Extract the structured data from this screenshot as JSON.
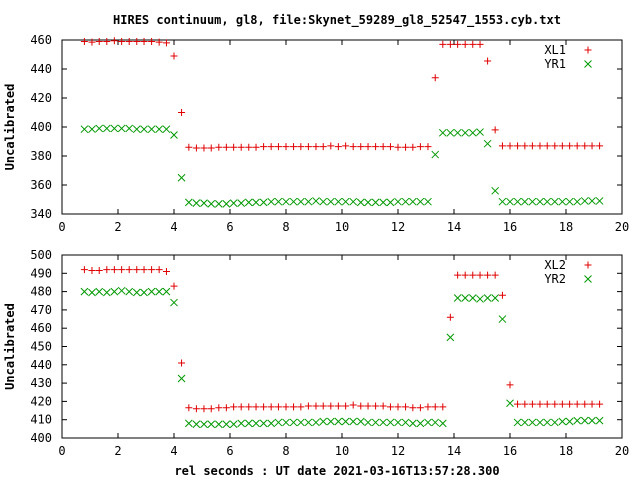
{
  "title": "HIRES continuum, gl8, file:Skynet_59289_gl8_52547_1553.cyb.txt",
  "xlabel": "rel seconds : UT date 2021-03-16T13:57:28.300",
  "colors": {
    "red": "#e00000",
    "green": "#009900"
  },
  "chart_data": [
    {
      "type": "scatter",
      "ylabel": "Uncalibrated",
      "xlim": [
        0,
        20
      ],
      "ylim": [
        340,
        460
      ],
      "xticks": [
        0,
        2,
        4,
        6,
        8,
        10,
        12,
        14,
        16,
        18,
        20
      ],
      "yticks": [
        340,
        360,
        380,
        400,
        420,
        440,
        460
      ],
      "legend_position": "top-right",
      "x": [
        0.8,
        1.07,
        1.33,
        1.6,
        1.87,
        2.13,
        2.4,
        2.67,
        2.93,
        3.2,
        3.47,
        3.73,
        4.0,
        4.27,
        4.53,
        4.8,
        5.07,
        5.33,
        5.6,
        5.87,
        6.13,
        6.4,
        6.67,
        6.93,
        7.2,
        7.47,
        7.73,
        8.0,
        8.27,
        8.53,
        8.8,
        9.07,
        9.33,
        9.6,
        9.87,
        10.13,
        10.4,
        10.67,
        10.93,
        11.2,
        11.47,
        11.73,
        12.0,
        12.27,
        12.53,
        12.8,
        13.07,
        13.33,
        13.6,
        13.87,
        14.13,
        14.4,
        14.67,
        14.93,
        15.2,
        15.47,
        15.73,
        16.0,
        16.27,
        16.53,
        16.8,
        17.07,
        17.33,
        17.6,
        17.87,
        18.13,
        18.4,
        18.67,
        18.93,
        19.2
      ],
      "series": [
        {
          "name": "XL1",
          "marker": "plus",
          "color": "#e00000",
          "values": [
            459,
            458.5,
            459,
            459,
            459.5,
            459,
            459,
            459,
            459,
            459,
            458.5,
            458,
            449,
            410,
            386,
            385.5,
            385.5,
            385.5,
            386,
            386,
            386,
            386,
            386,
            386,
            386.5,
            386.5,
            386.5,
            386.5,
            386.5,
            386.5,
            386.5,
            386.5,
            386.5,
            387,
            386.5,
            387,
            386.5,
            386.5,
            386.5,
            386.5,
            386.5,
            386.5,
            386,
            386,
            386,
            386.5,
            386.5,
            434,
            457,
            457,
            457,
            457,
            457,
            457,
            445.5,
            398,
            387,
            387,
            387,
            387,
            387,
            387,
            387,
            387,
            387,
            387,
            387,
            387,
            387,
            387
          ]
        },
        {
          "name": "YR1",
          "marker": "cross",
          "color": "#009900",
          "values": [
            398.5,
            398.5,
            399,
            399,
            399,
            399,
            399,
            398.5,
            398.5,
            398.5,
            398.5,
            398.5,
            394.5,
            365,
            348,
            347.5,
            347.5,
            347,
            347,
            347,
            347.5,
            347.5,
            348,
            348,
            348,
            348.5,
            348.5,
            348.5,
            348.5,
            348.5,
            348.5,
            349,
            348.5,
            348.5,
            348.5,
            348.5,
            348.5,
            348,
            348,
            348,
            348,
            348,
            348.5,
            348.5,
            348.5,
            348.5,
            348.5,
            381,
            396,
            396,
            396,
            396,
            396,
            396.5,
            388.5,
            356,
            348.5,
            348.5,
            348.5,
            348.5,
            348.5,
            348.5,
            348.5,
            348.5,
            348.5,
            348.5,
            348.5,
            349,
            349,
            349
          ]
        }
      ]
    },
    {
      "type": "scatter",
      "ylabel": "Uncalibrated",
      "xlim": [
        0,
        20
      ],
      "ylim": [
        400,
        500
      ],
      "xticks": [
        0,
        2,
        4,
        6,
        8,
        10,
        12,
        14,
        16,
        18,
        20
      ],
      "yticks": [
        400,
        410,
        420,
        430,
        440,
        450,
        460,
        470,
        480,
        490,
        500
      ],
      "legend_position": "top-right",
      "x": [
        0.8,
        1.07,
        1.33,
        1.6,
        1.87,
        2.13,
        2.4,
        2.67,
        2.93,
        3.2,
        3.47,
        3.73,
        4.0,
        4.27,
        4.53,
        4.8,
        5.07,
        5.33,
        5.6,
        5.87,
        6.13,
        6.4,
        6.67,
        6.93,
        7.2,
        7.47,
        7.73,
        8.0,
        8.27,
        8.53,
        8.8,
        9.07,
        9.33,
        9.6,
        9.87,
        10.13,
        10.4,
        10.67,
        10.93,
        11.2,
        11.47,
        11.73,
        12.0,
        12.27,
        12.53,
        12.8,
        13.07,
        13.33,
        13.6,
        13.87,
        14.13,
        14.4,
        14.67,
        14.93,
        15.2,
        15.47,
        15.73,
        16.0,
        16.27,
        16.53,
        16.8,
        17.07,
        17.33,
        17.6,
        17.87,
        18.13,
        18.4,
        18.67,
        18.93,
        19.2
      ],
      "series": [
        {
          "name": "XL2",
          "marker": "plus",
          "color": "#e00000",
          "values": [
            492,
            491.5,
            491.5,
            492,
            492,
            492,
            492,
            492,
            492,
            492,
            492,
            491,
            483,
            441,
            416.5,
            416,
            416,
            416,
            416.5,
            416.5,
            417,
            417,
            417,
            417,
            417,
            417,
            417,
            417,
            417,
            417,
            417.5,
            417.5,
            417.5,
            417.5,
            417.5,
            417.5,
            418,
            417.5,
            417.5,
            417.5,
            417.5,
            417,
            417,
            417,
            416.5,
            416.5,
            417,
            417,
            417,
            466,
            489,
            489,
            489,
            489,
            489,
            489,
            478,
            429,
            418.5,
            418.5,
            418.5,
            418.5,
            418.5,
            418.5,
            418.5,
            418.5,
            418.5,
            418.5,
            418.5,
            418.5
          ]
        },
        {
          "name": "YR2",
          "marker": "cross",
          "color": "#009900",
          "values": [
            480,
            479.5,
            480,
            479.5,
            480,
            480.5,
            480,
            479.5,
            479.5,
            480,
            480,
            480,
            474,
            432.5,
            408,
            407.5,
            407.5,
            407.5,
            407.5,
            407.5,
            407.5,
            408,
            408,
            408,
            408,
            408,
            408.5,
            408.5,
            408.5,
            408.5,
            408.5,
            408.5,
            409,
            409,
            409,
            409,
            409,
            409,
            408.5,
            408.5,
            408.5,
            408.5,
            408.5,
            408.5,
            408,
            408,
            408.5,
            408.5,
            408,
            455,
            476.5,
            476.5,
            476.5,
            476,
            476.5,
            476.5,
            465,
            419,
            408.5,
            408.5,
            408.5,
            408.5,
            408.5,
            408.5,
            409,
            409,
            409.5,
            409.5,
            409.5,
            409.5
          ]
        }
      ]
    }
  ]
}
